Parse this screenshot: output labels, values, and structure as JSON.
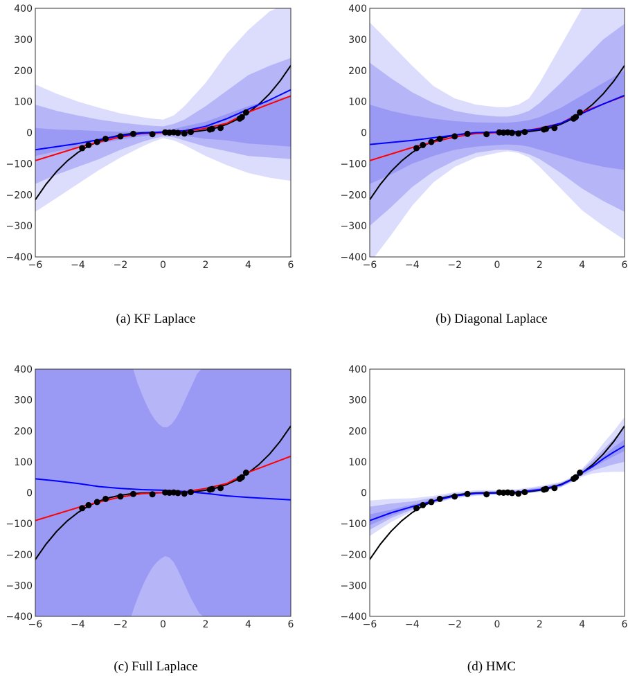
{
  "chart_data": [
    {
      "type": "line",
      "caption": "(a) KF Laplace",
      "xlim": [
        -6,
        6
      ],
      "ylim": [
        -400,
        400
      ],
      "xticks": [
        -6,
        -4,
        -2,
        0,
        2,
        4,
        6
      ],
      "yticks": [
        -400,
        -300,
        -200,
        -100,
        0,
        100,
        200,
        300,
        400
      ],
      "band_colors": [
        "#dcdcfc",
        "#b5b5f8",
        "#9a9af5"
      ],
      "bands_x": [
        -6,
        -5,
        -4,
        -3,
        -2,
        -1,
        -0.5,
        0,
        0.5,
        1,
        2,
        3,
        4,
        5,
        6
      ],
      "bands": [
        {
          "lo": [
            -255,
            -210,
            -165,
            -120,
            -80,
            -45,
            -30,
            -18,
            -25,
            -40,
            -75,
            -105,
            -130,
            -145,
            -155
          ],
          "hi": [
            155,
            125,
            100,
            80,
            62,
            50,
            45,
            42,
            55,
            85,
            160,
            255,
            330,
            390,
            420
          ]
        },
        {
          "lo": [
            -165,
            -135,
            -110,
            -85,
            -55,
            -30,
            -20,
            -12,
            -15,
            -25,
            -45,
            -60,
            -75,
            -80,
            -85
          ],
          "hi": [
            90,
            70,
            55,
            42,
            32,
            25,
            22,
            20,
            28,
            42,
            85,
            135,
            185,
            215,
            240
          ]
        },
        {
          "lo": [
            -75,
            -60,
            -50,
            -35,
            -22,
            -12,
            -8,
            -5,
            -7,
            -10,
            -20,
            -25,
            -35,
            -40,
            -45
          ],
          "hi": [
            15,
            10,
            8,
            5,
            3,
            5,
            5,
            6,
            12,
            20,
            35,
            60,
            85,
            105,
            118
          ]
        }
      ],
      "series": [
        {
          "color": "#000000",
          "x": [
            -6,
            -5.5,
            -5,
            -4.5,
            -4,
            -3.5,
            -3,
            -2.5,
            -2,
            -1.5,
            -1,
            -0.5,
            0,
            0.5,
            1,
            1.5,
            2,
            2.5,
            3,
            3.5,
            4,
            4.5,
            5,
            5.5,
            6
          ],
          "y": [
            -216,
            -166.4,
            -125,
            -91.1,
            -64,
            -42.9,
            -27,
            -15.6,
            -8,
            -3.4,
            -1,
            -0.1,
            0,
            0.1,
            1,
            3.4,
            8,
            15.6,
            27,
            42.9,
            64,
            91.1,
            125,
            166.4,
            216
          ]
        },
        {
          "color": "#ff0000",
          "x": [
            -6,
            -4,
            -3,
            -2,
            -1,
            0,
            1,
            2,
            3,
            4,
            6
          ],
          "y": [
            -90,
            -48,
            -30,
            -14,
            -3,
            0,
            3,
            14,
            30,
            66,
            118
          ]
        },
        {
          "color": "#0000ff",
          "x": [
            -6,
            -4,
            -2,
            -1,
            0,
            1,
            2,
            3,
            4,
            5,
            6
          ],
          "y": [
            -55,
            -35,
            -10,
            -2,
            2,
            6,
            20,
            45,
            75,
            105,
            138
          ]
        }
      ],
      "points": {
        "x": [
          -3.8,
          -3.5,
          -3.1,
          -2.7,
          -2.0,
          -1.4,
          -0.5,
          0.1,
          0.3,
          0.5,
          0.7,
          1.0,
          1.3,
          2.2,
          2.3,
          2.7,
          3.6,
          3.7,
          3.9
        ],
        "y": [
          -50,
          -40,
          -30,
          -20,
          -12,
          -4,
          -5,
          1,
          0,
          1,
          -1,
          -3,
          2,
          10,
          12,
          15,
          45,
          50,
          65
        ]
      }
    },
    {
      "type": "line",
      "caption": "(b) Diagonal Laplace",
      "xlim": [
        -6,
        6
      ],
      "ylim": [
        -400,
        400
      ],
      "xticks": [
        -6,
        -4,
        -2,
        0,
        2,
        4,
        6
      ],
      "yticks": [
        -400,
        -300,
        -200,
        -100,
        0,
        100,
        200,
        300,
        400
      ],
      "band_colors": [
        "#dcdcfc",
        "#b5b5f8",
        "#9a9af5"
      ],
      "bands_x": [
        -6,
        -5,
        -4,
        -3,
        -2,
        -1,
        0,
        0.5,
        1,
        1.5,
        2,
        3,
        4,
        5,
        6
      ],
      "bands": [
        {
          "lo": [
            -420,
            -330,
            -235,
            -160,
            -110,
            -80,
            -65,
            -60,
            -65,
            -80,
            -110,
            -180,
            -250,
            -300,
            -345
          ],
          "hi": [
            355,
            285,
            215,
            150,
            110,
            90,
            82,
            82,
            90,
            110,
            160,
            280,
            400,
            420,
            420
          ]
        },
        {
          "lo": [
            -300,
            -240,
            -175,
            -125,
            -90,
            -65,
            -55,
            -55,
            -60,
            -70,
            -85,
            -130,
            -180,
            -220,
            -255
          ],
          "hi": [
            225,
            175,
            130,
            95,
            70,
            58,
            52,
            52,
            58,
            70,
            95,
            160,
            230,
            300,
            350
          ]
        },
        {
          "lo": [
            -165,
            -135,
            -100,
            -75,
            -55,
            -45,
            -40,
            -38,
            -40,
            -45,
            -55,
            -75,
            -95,
            -110,
            -120
          ],
          "hi": [
            90,
            70,
            55,
            45,
            37,
            33,
            32,
            32,
            35,
            40,
            50,
            80,
            120,
            160,
            200
          ]
        }
      ],
      "series": [
        {
          "color": "#000000",
          "x": [
            -6,
            -5.5,
            -5,
            -4.5,
            -4,
            -3.5,
            -3,
            -2.5,
            -2,
            -1.5,
            -1,
            -0.5,
            0,
            0.5,
            1,
            1.5,
            2,
            2.5,
            3,
            3.5,
            4,
            4.5,
            5,
            5.5,
            6
          ],
          "y": [
            -216,
            -166.4,
            -125,
            -91.1,
            -64,
            -42.9,
            -27,
            -15.6,
            -8,
            -3.4,
            -1,
            -0.1,
            0,
            0.1,
            1,
            3.4,
            8,
            15.6,
            27,
            42.9,
            64,
            91.1,
            125,
            166.4,
            216
          ]
        },
        {
          "color": "#ff0000",
          "x": [
            -6,
            -4,
            -3,
            -2,
            -1,
            0,
            1,
            2,
            3,
            4,
            6
          ],
          "y": [
            -90,
            -48,
            -30,
            -14,
            -3,
            0,
            3,
            14,
            30,
            66,
            118
          ]
        },
        {
          "color": "#0000ff",
          "x": [
            -6,
            -4,
            -2,
            -1,
            0,
            1,
            2,
            3,
            4,
            5,
            6
          ],
          "y": [
            -38,
            -25,
            -8,
            0,
            2,
            4,
            12,
            30,
            62,
            92,
            120
          ]
        }
      ],
      "points": {
        "x": [
          -3.8,
          -3.5,
          -3.1,
          -2.7,
          -2.0,
          -1.4,
          -0.5,
          0.1,
          0.3,
          0.5,
          0.7,
          1.0,
          1.3,
          2.2,
          2.3,
          2.7,
          3.6,
          3.7,
          3.9
        ],
        "y": [
          -50,
          -40,
          -30,
          -20,
          -12,
          -4,
          -5,
          1,
          0,
          1,
          -1,
          -3,
          2,
          10,
          12,
          15,
          45,
          50,
          65
        ]
      }
    },
    {
      "type": "line",
      "caption": "(c) Full Laplace",
      "xlim": [
        -6,
        6
      ],
      "ylim": [
        -400,
        400
      ],
      "xticks": [
        -6,
        -4,
        -2,
        0,
        2,
        4,
        6
      ],
      "yticks": [
        -400,
        -300,
        -200,
        -100,
        0,
        100,
        200,
        300,
        400
      ],
      "band_colors": [
        "#9a9af5",
        "#b5b5f8"
      ],
      "bands_x": [
        -6,
        6
      ],
      "bands": [
        {
          "lo": [
            -400,
            -400
          ],
          "hi": [
            400,
            400
          ]
        }
      ],
      "inner_bands": [
        {
          "x": [
            -1.4,
            -1.2,
            -1.0,
            -0.8,
            -0.6,
            -0.4,
            -0.2,
            0,
            0.2,
            0.4,
            0.6,
            0.8,
            1.0,
            1.2,
            1.4,
            1.6,
            1.8,
            1.8
          ],
          "y": [
            400,
            355,
            320,
            288,
            260,
            238,
            222,
            212,
            212,
            222,
            240,
            265,
            295,
            325,
            355,
            385,
            400,
            400
          ]
        },
        {
          "x": [
            -1.5,
            -1.3,
            -1.1,
            -0.9,
            -0.7,
            -0.5,
            -0.3,
            -0.1,
            0.1,
            0.3,
            0.5,
            0.7,
            0.9,
            1.1,
            1.3,
            1.5,
            1.7,
            1.9
          ],
          "y": [
            -400,
            -360,
            -325,
            -292,
            -265,
            -242,
            -225,
            -213,
            -205,
            -210,
            -225,
            -250,
            -280,
            -310,
            -340,
            -365,
            -390,
            -400
          ]
        }
      ],
      "series": [
        {
          "color": "#000000",
          "x": [
            -6,
            -5.5,
            -5,
            -4.5,
            -4,
            -3.5,
            -3,
            -2.5,
            -2,
            -1.5,
            -1,
            -0.5,
            0,
            0.5,
            1,
            1.5,
            2,
            2.5,
            3,
            3.5,
            4,
            4.5,
            5,
            5.5,
            6
          ],
          "y": [
            -216,
            -166.4,
            -125,
            -91.1,
            -64,
            -42.9,
            -27,
            -15.6,
            -8,
            -3.4,
            -1,
            -0.1,
            0,
            0.1,
            1,
            3.4,
            8,
            15.6,
            27,
            42.9,
            64,
            91.1,
            125,
            166.4,
            216
          ]
        },
        {
          "color": "#ff0000",
          "x": [
            -6,
            -4,
            -3,
            -2,
            -1,
            0,
            1,
            2,
            3,
            4,
            6
          ],
          "y": [
            -90,
            -48,
            -30,
            -14,
            -3,
            0,
            3,
            14,
            30,
            66,
            118
          ]
        },
        {
          "color": "#0000ff",
          "x": [
            -6,
            -5,
            -4,
            -3,
            -2,
            -1,
            0,
            1,
            2,
            3,
            4,
            5,
            6
          ],
          "y": [
            45,
            38,
            30,
            20,
            14,
            10,
            8,
            4,
            -2,
            -10,
            -15,
            -19,
            -23
          ]
        }
      ],
      "points": {
        "x": [
          -3.8,
          -3.5,
          -3.1,
          -2.7,
          -2.0,
          -1.4,
          -0.5,
          0.1,
          0.3,
          0.5,
          0.7,
          1.0,
          1.3,
          2.2,
          2.3,
          2.7,
          3.6,
          3.7,
          3.9
        ],
        "y": [
          -50,
          -40,
          -30,
          -20,
          -12,
          -4,
          -5,
          1,
          0,
          1,
          -1,
          -3,
          2,
          10,
          12,
          15,
          45,
          50,
          65
        ]
      }
    },
    {
      "type": "line",
      "caption": "(d) HMC",
      "xlim": [
        -6,
        6
      ],
      "ylim": [
        -400,
        400
      ],
      "xticks": [
        -6,
        -4,
        -2,
        0,
        2,
        4,
        6
      ],
      "yticks": [
        -400,
        -300,
        -200,
        -100,
        0,
        100,
        200,
        300,
        400
      ],
      "band_colors": [
        "#dcdcfc",
        "#b5b5f8",
        "#9a9af5"
      ],
      "bands_x": [
        -6,
        -5,
        -4,
        -3,
        -2,
        -1,
        0,
        1,
        2,
        3,
        3.5,
        4,
        4.5,
        5,
        5.5,
        6
      ],
      "bands": [
        {
          "lo": [
            -140,
            -95,
            -60,
            -35,
            -18,
            -10,
            -7,
            -5,
            2,
            17,
            33,
            52,
            62,
            66,
            68,
            68
          ],
          "hi": [
            -25,
            -20,
            -18,
            -10,
            2,
            8,
            8,
            12,
            22,
            35,
            50,
            78,
            115,
            160,
            200,
            245
          ]
        },
        {
          "lo": [
            -120,
            -82,
            -55,
            -32,
            -15,
            -7,
            -5,
            -3,
            4,
            19,
            36,
            56,
            72,
            82,
            92,
            100
          ],
          "hi": [
            -45,
            -35,
            -28,
            -16,
            -3,
            4,
            5,
            8,
            18,
            32,
            48,
            74,
            105,
            140,
            175,
            210
          ]
        },
        {
          "lo": [
            -105,
            -75,
            -50,
            -30,
            -12,
            -5,
            -3,
            -1,
            6,
            21,
            38,
            60,
            80,
            100,
            118,
            135
          ],
          "hi": [
            -70,
            -55,
            -38,
            -22,
            -7,
            1,
            2,
            5,
            15,
            29,
            45,
            68,
            92,
            120,
            148,
            172
          ]
        }
      ],
      "series": [
        {
          "color": "#000000",
          "x": [
            -6,
            -5.5,
            -5,
            -4.5,
            -4,
            -3.5,
            -3,
            -2.5,
            -2,
            -1.5,
            -1,
            -0.5,
            0,
            0.5,
            1,
            1.5,
            2,
            2.5,
            3,
            3.5,
            4,
            4.5,
            5,
            5.5,
            6
          ],
          "y": [
            -216,
            -166.4,
            -125,
            -91.1,
            -64,
            -42.9,
            -27,
            -15.6,
            -8,
            -3.4,
            -1,
            -0.1,
            0,
            0.1,
            1,
            3.4,
            8,
            15.6,
            27,
            42.9,
            64,
            91.1,
            125,
            166.4,
            216
          ]
        },
        {
          "color": "#0000ff",
          "x": [
            -6,
            -5,
            -4,
            -3,
            -2,
            -1,
            0,
            1,
            2,
            3,
            3.5,
            4,
            4.5,
            5,
            5.5,
            6
          ],
          "y": [
            -90,
            -65,
            -45,
            -27,
            -10,
            -2,
            -1,
            2,
            10,
            25,
            42,
            65,
            85,
            110,
            132,
            152
          ]
        }
      ],
      "points": {
        "x": [
          -3.8,
          -3.5,
          -3.1,
          -2.7,
          -2.0,
          -1.4,
          -0.5,
          0.1,
          0.3,
          0.5,
          0.7,
          1.0,
          1.3,
          2.2,
          2.3,
          2.7,
          3.6,
          3.7,
          3.9
        ],
        "y": [
          -50,
          -40,
          -30,
          -20,
          -12,
          -4,
          -5,
          1,
          0,
          1,
          -1,
          -3,
          2,
          10,
          12,
          15,
          45,
          50,
          65
        ]
      }
    }
  ]
}
